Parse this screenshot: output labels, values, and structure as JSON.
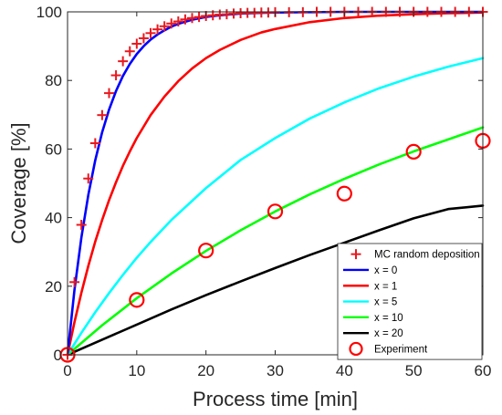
{
  "chart_data": {
    "type": "line",
    "xlabel": "Process time [min]",
    "ylabel": "Coverage [%]",
    "xlim": [
      0,
      60
    ],
    "ylim": [
      0,
      100
    ],
    "xticks": [
      0,
      10,
      20,
      30,
      40,
      50,
      60
    ],
    "yticks": [
      0,
      20,
      40,
      60,
      80,
      100
    ],
    "grid": false,
    "legend_position": "bottom-right",
    "series": [
      {
        "name": "x = 0",
        "kind": "line",
        "color": "#0000ff",
        "x": [
          0,
          1,
          2,
          3,
          4,
          5,
          6,
          7,
          8,
          9,
          10,
          11,
          12,
          13,
          14,
          15,
          16,
          18,
          20,
          22,
          25,
          28,
          30,
          35,
          40,
          45,
          50,
          55,
          60
        ],
        "y": [
          0,
          18.9,
          34.2,
          46.6,
          56.7,
          64.9,
          71.5,
          76.9,
          81.3,
          84.8,
          87.7,
          90.0,
          91.9,
          93.4,
          94.6,
          95.7,
          96.5,
          97.7,
          98.5,
          99.0,
          99.5,
          99.7,
          99.8,
          99.9,
          100,
          100,
          100,
          100,
          100
        ]
      },
      {
        "name": "x = 1",
        "kind": "line",
        "color": "#ff0000",
        "x": [
          0,
          1,
          2,
          3,
          4,
          5,
          6,
          7,
          8,
          9,
          10,
          12,
          14,
          16,
          18,
          20,
          22,
          25,
          28,
          30,
          35,
          40,
          45,
          50,
          55,
          60
        ],
        "y": [
          0,
          9.5,
          18.1,
          25.9,
          33.0,
          39.3,
          45.1,
          50.3,
          55.1,
          59.3,
          63.2,
          69.9,
          75.3,
          79.8,
          83.5,
          86.5,
          88.9,
          91.8,
          94.0,
          95.0,
          97.0,
          98.2,
          98.9,
          99.3,
          99.6,
          99.8
        ]
      },
      {
        "name": "x = 5",
        "kind": "line",
        "color": "#00ffff",
        "x": [
          0,
          2,
          4,
          6,
          8,
          10,
          12,
          15,
          20,
          25,
          30,
          35,
          40,
          45,
          50,
          55,
          60
        ],
        "y": [
          0,
          6.4,
          12.4,
          18.0,
          23.3,
          28.3,
          32.9,
          39.3,
          48.6,
          56.8,
          63.2,
          68.9,
          73.6,
          77.7,
          81.1,
          84.0,
          86.5
        ]
      },
      {
        "name": "x = 10",
        "kind": "line",
        "color": "#00ff00",
        "x": [
          0,
          5,
          10,
          15,
          20,
          25,
          30,
          35,
          40,
          45,
          50,
          55,
          60
        ],
        "y": [
          0,
          8.6,
          16.5,
          23.7,
          30.3,
          36.3,
          41.8,
          46.8,
          51.3,
          55.5,
          59.3,
          62.8,
          66.3
        ]
      },
      {
        "name": "x = 20",
        "kind": "line",
        "color": "#000000",
        "x": [
          0,
          5,
          10,
          15,
          20,
          25,
          30,
          35,
          40,
          45,
          50,
          55,
          60
        ],
        "y": [
          0,
          4.4,
          8.8,
          13.2,
          17.4,
          21.4,
          25.3,
          29.1,
          32.7,
          36.3,
          39.8,
          42.5,
          43.5
        ]
      },
      {
        "name": "MC random deposition",
        "kind": "marker-plus",
        "color": "#e8191f",
        "x": [
          0,
          1,
          2,
          3,
          4,
          5,
          6,
          7,
          8,
          9,
          10,
          11,
          12,
          13,
          14,
          15,
          16,
          17,
          18,
          19,
          20,
          21,
          22,
          23,
          24,
          25,
          26,
          27,
          28,
          29,
          30,
          32,
          34,
          36,
          38,
          40,
          42,
          44,
          46,
          48,
          50,
          52,
          54,
          56,
          58,
          60
        ],
        "y": [
          0,
          21.2,
          37.9,
          51.4,
          61.7,
          69.9,
          76.3,
          81.5,
          85.6,
          88.5,
          90.7,
          92.3,
          93.8,
          94.9,
          95.8,
          96.6,
          97.2,
          97.8,
          98.2,
          98.5,
          98.8,
          99.0,
          99.2,
          99.3,
          99.5,
          99.6,
          99.7,
          99.7,
          99.8,
          99.8,
          99.9,
          99.9,
          99.9,
          100,
          100,
          100,
          100,
          100,
          100,
          100,
          100,
          100,
          100,
          100,
          100,
          100
        ]
      },
      {
        "name": "Experiment",
        "kind": "marker-circle",
        "color": "#ff0000",
        "x": [
          0,
          10,
          20,
          30,
          40,
          50,
          60
        ],
        "y": [
          0,
          16.0,
          30.4,
          41.8,
          47.0,
          59.2,
          62.4
        ]
      }
    ],
    "legend_order": [
      "MC random deposition",
      "x = 0",
      "x = 1",
      "x = 5",
      "x = 10",
      "x = 20",
      "Experiment"
    ]
  }
}
